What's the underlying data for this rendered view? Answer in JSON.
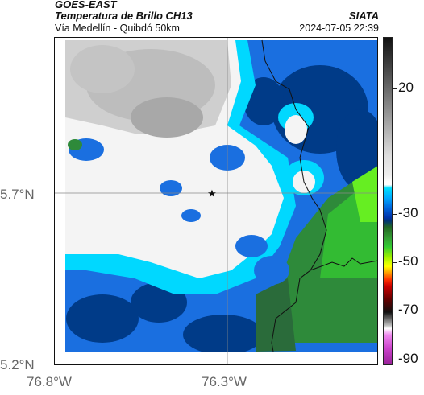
{
  "header": {
    "product": "GOES-EAST",
    "title": "Temperatura de Brillo CH13",
    "subtitle": "Vía Medellín - Quibdó 50km",
    "organization": "SIATA",
    "timestamp": "2024-07-05 22:39"
  },
  "axes": {
    "lat_ticks": [
      "5.7°N",
      "5.2°N"
    ],
    "lon_ticks": [
      "76.8°W",
      "76.3°W"
    ]
  },
  "colorbar": {
    "labels": [
      "20",
      "-30",
      "-50",
      "-70",
      "-90"
    ]
  },
  "colors": {
    "cold_cloud_white": "#f2f2f2",
    "cyan": "#00e0ff",
    "blue": "#0080ff",
    "navy": "#003377",
    "green": "#33aa33",
    "lime": "#55ee22"
  },
  "marker": {
    "icon": "star-icon"
  }
}
